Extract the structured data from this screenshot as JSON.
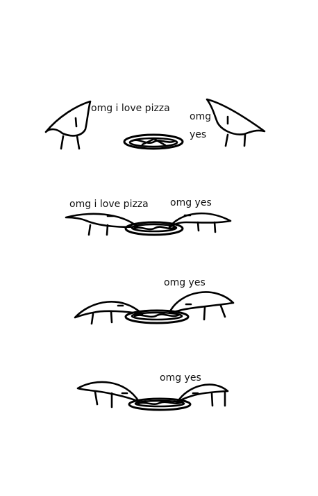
{
  "panels": [
    {
      "labels": [
        "omg i love pizza",
        "omg",
        "yes"
      ]
    },
    {
      "labels": [
        "omg i love pizza",
        "omg yes"
      ]
    },
    {
      "labels": [
        "omg yes"
      ]
    },
    {
      "labels": [
        "omg yes"
      ]
    }
  ]
}
